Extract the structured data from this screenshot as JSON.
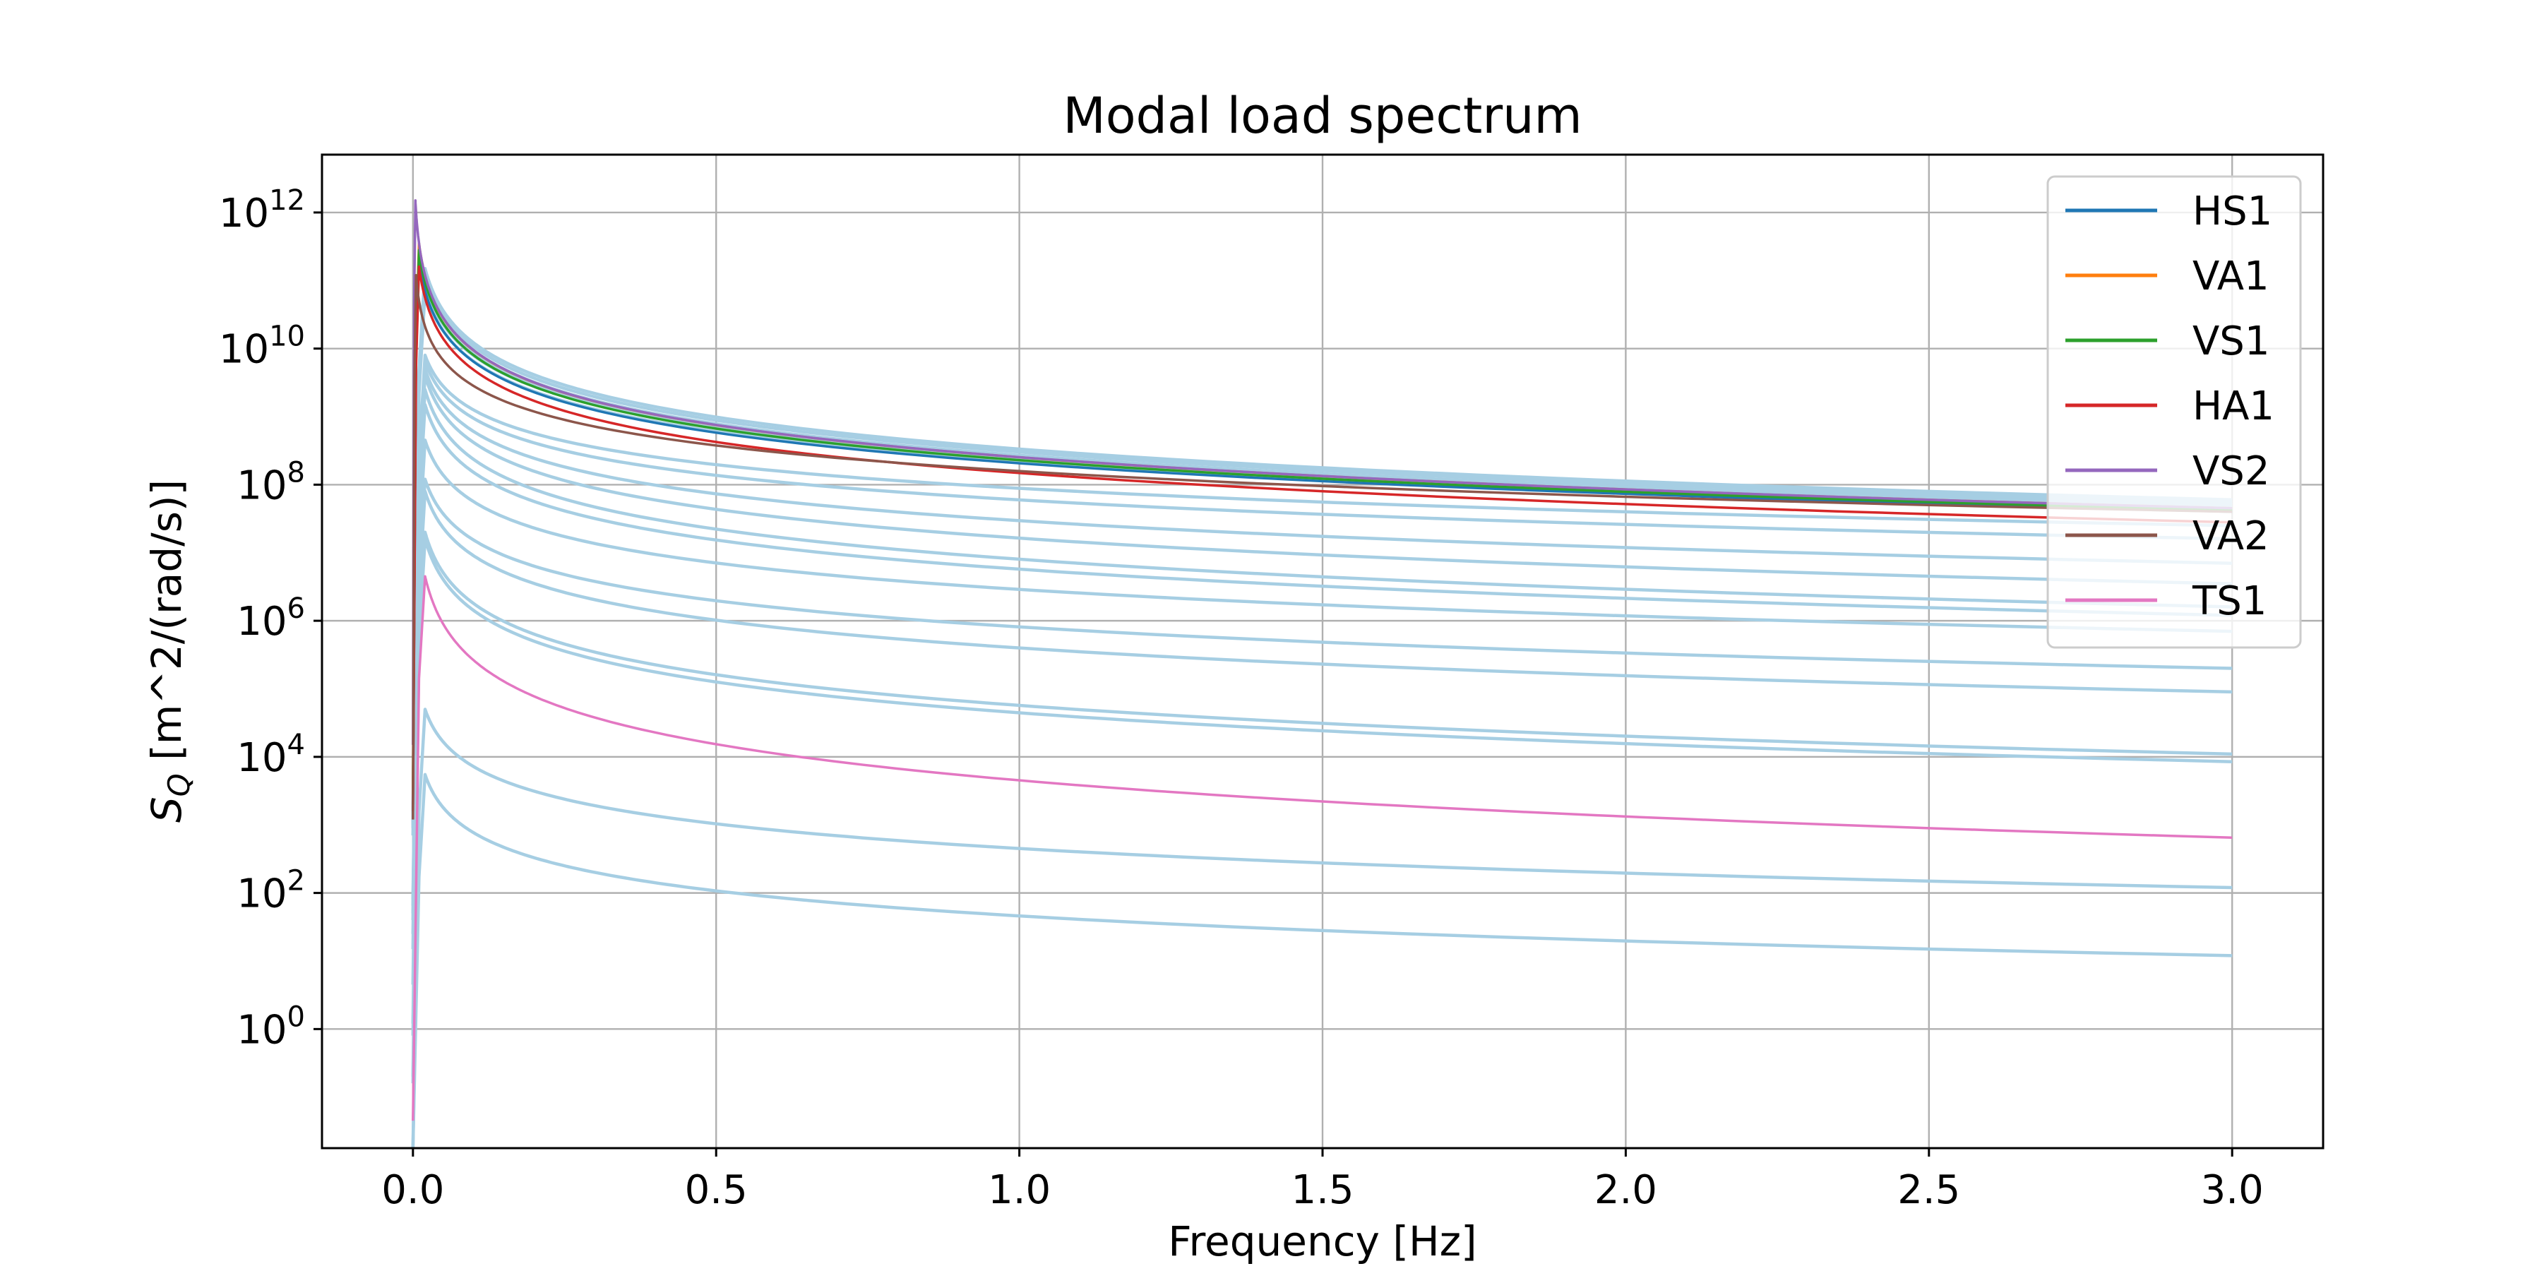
{
  "chart_data": {
    "type": "line",
    "title": "Modal load spectrum",
    "xlabel": "Frequency [Hz]",
    "ylabel_symbol": "S",
    "ylabel_subscript": "Q",
    "ylabel_rest": " [m^2/(rad/s)]",
    "xlim": [
      -0.15,
      3.15
    ],
    "ylim_log10": [
      -1.75,
      12.85
    ],
    "log_y": true,
    "grid": true,
    "legend_position": "top-right",
    "x_ticks": [
      {
        "value": 0.0,
        "label": "0.0"
      },
      {
        "value": 0.5,
        "label": "0.5"
      },
      {
        "value": 1.0,
        "label": "1.0"
      },
      {
        "value": 1.5,
        "label": "1.5"
      },
      {
        "value": 2.0,
        "label": "2.0"
      },
      {
        "value": 2.5,
        "label": "2.5"
      },
      {
        "value": 3.0,
        "label": "3.0"
      }
    ],
    "y_ticks": [
      {
        "exp": 0,
        "base": "10",
        "sup": "0"
      },
      {
        "exp": 2,
        "base": "10",
        "sup": "2"
      },
      {
        "exp": 4,
        "base": "10",
        "sup": "4"
      },
      {
        "exp": 6,
        "base": "10",
        "sup": "6"
      },
      {
        "exp": 8,
        "base": "10",
        "sup": "8"
      },
      {
        "exp": 10,
        "base": "10",
        "sup": "10"
      },
      {
        "exp": 12,
        "base": "10",
        "sup": "12"
      }
    ],
    "series": [
      {
        "name": "HS1",
        "color": "#1f77b4",
        "peak_freq": 0.01,
        "peak_value": 200000000000.0,
        "end_value": 40000000.0
      },
      {
        "name": "VA1",
        "color": "#ff7f0e",
        "peak_freq": 0.01,
        "peak_value": 350000000000.0,
        "end_value": 45000000.0
      },
      {
        "name": "VS1",
        "color": "#2ca02c",
        "peak_freq": 0.01,
        "peak_value": 280000000000.0,
        "end_value": 42000000.0
      },
      {
        "name": "HA1",
        "color": "#d62728",
        "peak_freq": 0.01,
        "peak_value": 160000000000.0,
        "end_value": 28000000.0
      },
      {
        "name": "VS2",
        "color": "#9467bd",
        "peak_freq": 0.0,
        "peak_value": 1500000000000.0,
        "end_value": 45000000.0
      },
      {
        "name": "VA2",
        "color": "#8c564b",
        "peak_freq": 0.005,
        "peak_value": 120000000000.0,
        "end_value": 40000000.0
      },
      {
        "name": "TS1",
        "color": "#e377c2",
        "peak_freq": 0.02,
        "peak_value": 4500000.0,
        "end_value": 650
      }
    ],
    "unlabeled_series_color": "#a6cee3",
    "unlabeled_series": [
      {
        "peak_value": 150000000000.0,
        "end_value": 60000000.0
      },
      {
        "peak_value": 130000000000.0,
        "end_value": 55000000.0
      },
      {
        "peak_value": 110000000000.0,
        "end_value": 50000000.0
      },
      {
        "peak_value": 100000000000.0,
        "end_value": 48000000.0
      },
      {
        "peak_value": 90000000000.0,
        "end_value": 46000000.0
      },
      {
        "peak_value": 70000000000.0,
        "end_value": 43000000.0
      },
      {
        "peak_value": 8000000000.0,
        "end_value": 25000000.0
      },
      {
        "peak_value": 6500000000.0,
        "end_value": 16000000.0
      },
      {
        "peak_value": 5000000000.0,
        "end_value": 7000000.0
      },
      {
        "peak_value": 4000000000.0,
        "end_value": 3500000.0
      },
      {
        "peak_value": 2500000000.0,
        "end_value": 1600000.0
      },
      {
        "peak_value": 1500000000.0,
        "end_value": 1200000.0
      },
      {
        "peak_value": 450000000.0,
        "end_value": 700000.0
      },
      {
        "peak_value": 120000000.0,
        "end_value": 200000.0
      },
      {
        "peak_value": 80000000.0,
        "end_value": 90000.0
      },
      {
        "peak_value": 20000000.0,
        "end_value": 11000.0
      },
      {
        "peak_value": 16000000.0,
        "end_value": 8500.0
      },
      {
        "peak_value": 50000.0,
        "end_value": 120
      },
      {
        "peak_value": 5500.0,
        "end_value": 12
      }
    ]
  }
}
